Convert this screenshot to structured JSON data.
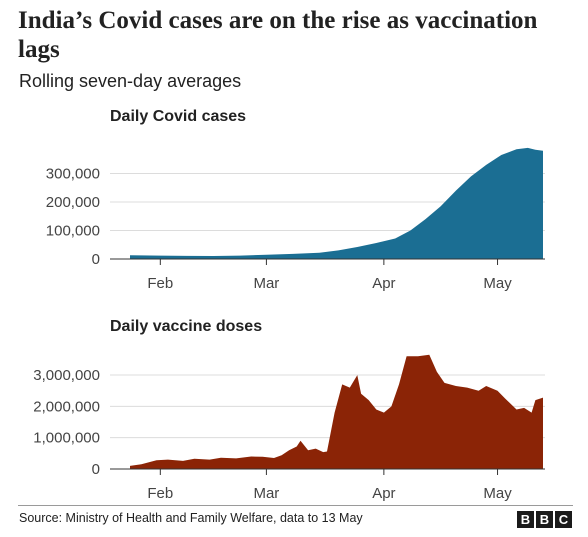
{
  "header": {
    "title": "India’s Covid cases are on the rise as vaccination lags",
    "subtitle": "Rolling seven-day averages"
  },
  "footer": {
    "source": "Source: Ministry of Health and Family Welfare, data to 13 May",
    "logo": [
      "B",
      "B",
      "C"
    ]
  },
  "colors": {
    "cases": "#1b6e93",
    "doses": "#8b2406",
    "grid": "#dcdcdc",
    "axis": "#333333"
  },
  "chart_data": [
    {
      "type": "area",
      "title": "Daily Covid cases",
      "xlabel": "",
      "ylabel": "",
      "x_ticks": [
        "Feb",
        "Mar",
        "Apr",
        "May"
      ],
      "x_range": [
        "2021-01-24",
        "2021-05-13"
      ],
      "ylim": [
        0,
        400000
      ],
      "y_ticks": [
        0,
        100000,
        200000,
        300000
      ],
      "y_tick_labels": [
        "0",
        "100,000",
        "200,000",
        "300,000"
      ],
      "grid": true,
      "x": [
        "2021-01-24",
        "2021-02-01",
        "2021-02-08",
        "2021-02-15",
        "2021-02-22",
        "2021-03-01",
        "2021-03-08",
        "2021-03-15",
        "2021-03-20",
        "2021-03-25",
        "2021-03-30",
        "2021-04-04",
        "2021-04-08",
        "2021-04-12",
        "2021-04-16",
        "2021-04-20",
        "2021-04-24",
        "2021-04-28",
        "2021-05-02",
        "2021-05-06",
        "2021-05-09",
        "2021-05-11",
        "2021-05-13"
      ],
      "values": [
        13000,
        12000,
        11000,
        10500,
        12000,
        15000,
        18000,
        22000,
        30000,
        42000,
        56000,
        72000,
        100000,
        140000,
        185000,
        240000,
        290000,
        330000,
        365000,
        385000,
        390000,
        383000,
        380000
      ]
    },
    {
      "type": "area",
      "title": "Daily vaccine doses",
      "xlabel": "",
      "ylabel": "",
      "x_ticks": [
        "Feb",
        "Mar",
        "Apr",
        "May"
      ],
      "x_range": [
        "2021-01-24",
        "2021-05-13"
      ],
      "ylim": [
        0,
        3800000
      ],
      "y_ticks": [
        0,
        1000000,
        2000000,
        3000000
      ],
      "y_tick_labels": [
        "0",
        "1,000,000",
        "2,000,000",
        "3,000,000"
      ],
      "grid": true,
      "x": [
        "2021-01-24",
        "2021-01-27",
        "2021-01-31",
        "2021-02-03",
        "2021-02-07",
        "2021-02-10",
        "2021-02-14",
        "2021-02-17",
        "2021-02-21",
        "2021-02-25",
        "2021-02-28",
        "2021-03-03",
        "2021-03-05",
        "2021-03-07",
        "2021-03-09",
        "2021-03-10",
        "2021-03-12",
        "2021-03-14",
        "2021-03-16",
        "2021-03-17",
        "2021-03-19",
        "2021-03-21",
        "2021-03-23",
        "2021-03-25",
        "2021-03-26",
        "2021-03-28",
        "2021-03-30",
        "2021-04-01",
        "2021-04-03",
        "2021-04-05",
        "2021-04-07",
        "2021-04-10",
        "2021-04-13",
        "2021-04-15",
        "2021-04-17",
        "2021-04-20",
        "2021-04-23",
        "2021-04-26",
        "2021-04-28",
        "2021-05-01",
        "2021-05-03",
        "2021-05-06",
        "2021-05-08",
        "2021-05-10",
        "2021-05-11",
        "2021-05-13"
      ],
      "values": [
        100000,
        150000,
        280000,
        300000,
        260000,
        330000,
        300000,
        360000,
        340000,
        400000,
        390000,
        350000,
        440000,
        600000,
        720000,
        900000,
        600000,
        650000,
        540000,
        560000,
        1800000,
        2700000,
        2600000,
        3000000,
        2400000,
        2200000,
        1900000,
        1800000,
        2000000,
        2700000,
        3600000,
        3600000,
        3650000,
        3100000,
        2750000,
        2650000,
        2600000,
        2500000,
        2650000,
        2500000,
        2250000,
        1900000,
        1950000,
        1800000,
        2200000,
        2280000
      ]
    }
  ]
}
